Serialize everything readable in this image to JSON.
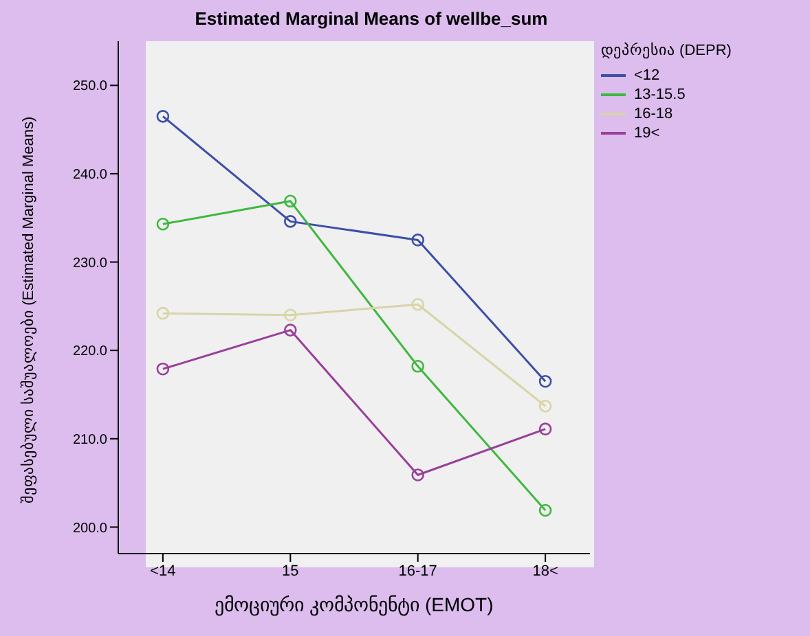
{
  "chart_data": {
    "type": "line",
    "title": "Estimated Marginal Means of wellbe_sum",
    "xlabel": "ემოციური კომპონენტი (EMOT)",
    "ylabel": "შეფასებული საშუალოები (Estimated Marginal Means)",
    "legend_title": "დეპრესია (DEPR)",
    "categories": [
      "<14",
      "15",
      "16-17",
      "18<"
    ],
    "series": [
      {
        "name": "<12",
        "color": "#3c4fa8",
        "values": [
          246.5,
          234.6,
          232.5,
          216.5
        ]
      },
      {
        "name": "13-15.5",
        "color": "#3fb83f",
        "values": [
          234.3,
          236.9,
          218.2,
          201.9
        ]
      },
      {
        "name": "16-18",
        "color": "#d8d4a6",
        "values": [
          224.2,
          224.0,
          225.2,
          213.7
        ]
      },
      {
        "name": "19<",
        "color": "#9a3f9a",
        "values": [
          217.9,
          222.3,
          205.9,
          211.1
        ]
      }
    ],
    "ylim": [
      197,
      255
    ],
    "yticks": [
      {
        "value": 200,
        "label": "200.0"
      },
      {
        "value": 210,
        "label": "210.0"
      },
      {
        "value": 220,
        "label": "220.0"
      },
      {
        "value": 230,
        "label": "230.0"
      },
      {
        "value": 240,
        "label": "240.0"
      },
      {
        "value": 250,
        "label": "250.0"
      }
    ],
    "grid": false,
    "legend": "top right",
    "marker": "circle",
    "line_style": "solid"
  }
}
